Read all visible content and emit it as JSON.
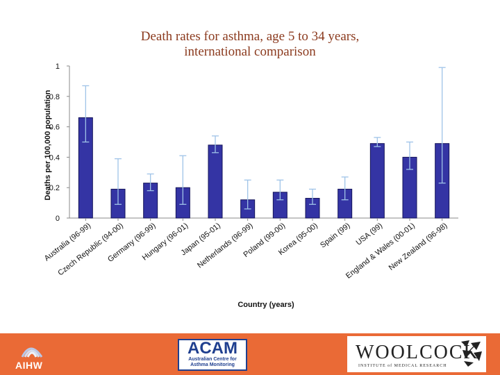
{
  "chart_data": {
    "type": "bar",
    "title_lines": [
      "Death rates for asthma, age 5 to 34 years,",
      "international comparison"
    ],
    "xlabel": "Country (years)",
    "ylabel": "Deaths per 100,000 population",
    "ylim": [
      0,
      1
    ],
    "yticks": [
      "0",
      "0.2",
      "0.4",
      "0.6",
      "0.8",
      "1"
    ],
    "ytick_values": [
      0,
      0.2,
      0.4,
      0.6,
      0.8,
      1
    ],
    "categories": [
      "Australia (96-99)",
      "Czech Republic (94-00)",
      "Germany (96-99)",
      "Hungary (96-01)",
      "Japan (95-01)",
      "Netherlands (96-99)",
      "Poland (99-00)",
      "Korea (95-00)",
      "Spain (99)",
      "USA (99)",
      "England & Wales (00-01)",
      "New Zealand (96-98)"
    ],
    "values": [
      0.66,
      0.19,
      0.23,
      0.2,
      0.48,
      0.12,
      0.17,
      0.13,
      0.19,
      0.49,
      0.4,
      0.49
    ],
    "error_low": [
      0.5,
      0.09,
      0.18,
      0.09,
      0.43,
      0.06,
      0.12,
      0.09,
      0.12,
      0.47,
      0.32,
      0.23
    ],
    "error_high": [
      0.87,
      0.39,
      0.29,
      0.41,
      0.54,
      0.25,
      0.25,
      0.19,
      0.27,
      0.53,
      0.5,
      0.99
    ],
    "colors": {
      "bar": "#3434a4",
      "bar_stroke": "#15155a",
      "error": "#9fc3e8",
      "axis": "#888888"
    }
  },
  "footer": {
    "aihw_label": "AIHW",
    "acam_title": "ACAM",
    "acam_subtitle_lines": [
      "Australian Centre for",
      "Asthma Monitoring"
    ],
    "woolcock_name": "WOOLCOCK",
    "woolcock_subtitle": "INSTITUTE of MEDICAL RESEARCH",
    "background": "#ea6a36"
  }
}
